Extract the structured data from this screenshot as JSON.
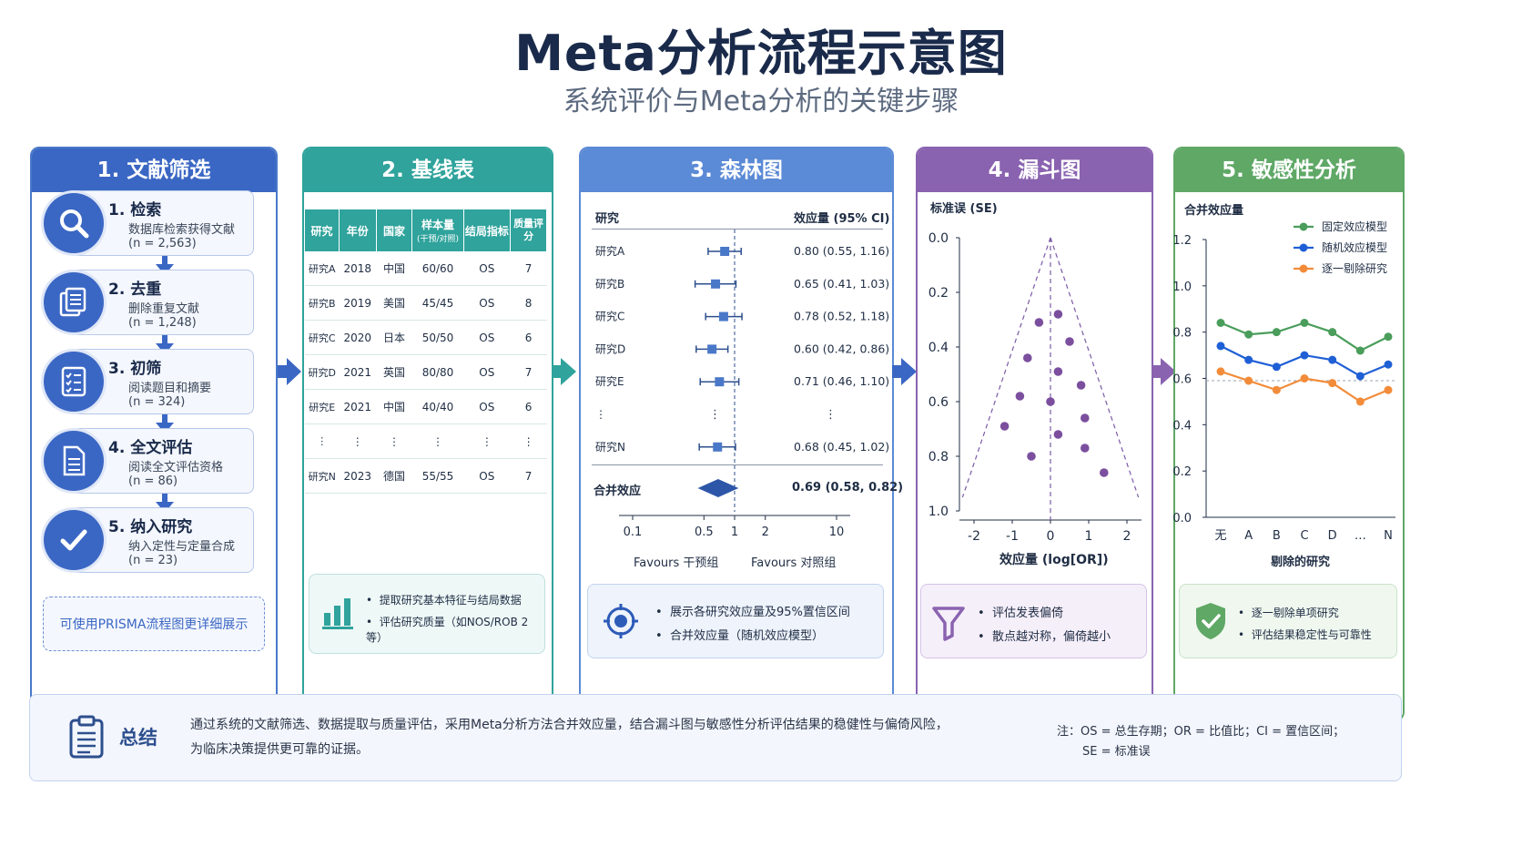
{
  "header": {
    "title": "Meta分析流程示意图",
    "subtitle": "系统评价与Meta分析的关键步骤"
  },
  "colors": {
    "blue": "#3b67c4",
    "teal": "#2fa39c",
    "forest": "#5b8ad6",
    "funnel": "#8a63b0",
    "sens": "#5fa866"
  },
  "panel1": {
    "title": "1. 文献筛选",
    "steps": [
      {
        "title": "1. 检索",
        "desc": "数据库检索获得文献",
        "count": "(n = 2,563)",
        "icon": "search-icon"
      },
      {
        "title": "2. 去重",
        "desc": "删除重复文献",
        "count": "(n = 1,248)",
        "icon": "documents-icon"
      },
      {
        "title": "3. 初筛",
        "desc": "阅读题目和摘要",
        "count": "(n = 324)",
        "icon": "checklist-icon"
      },
      {
        "title": "4. 全文评估",
        "desc": "阅读全文评估资格",
        "count": "(n = 86)",
        "icon": "document-icon"
      },
      {
        "title": "5. 纳入研究",
        "desc": "纳入定性与定量合成",
        "count": "(n = 23)",
        "icon": "check-icon"
      }
    ],
    "note": "可使用PRISMA流程图更详细展示"
  },
  "panel2": {
    "title": "2. 基线表",
    "headers": [
      "研究",
      "年份",
      "国家",
      "样本量",
      "结局指标",
      "质量评分"
    ],
    "sample_sub": "(干预/对照)",
    "rows": [
      [
        "研究A",
        "2018",
        "中国",
        "60/60",
        "OS",
        "7"
      ],
      [
        "研究B",
        "2019",
        "美国",
        "45/45",
        "OS",
        "8"
      ],
      [
        "研究C",
        "2020",
        "日本",
        "50/50",
        "OS",
        "6"
      ],
      [
        "研究D",
        "2021",
        "英国",
        "80/80",
        "OS",
        "7"
      ],
      [
        "研究E",
        "2021",
        "中国",
        "40/40",
        "OS",
        "6"
      ],
      [
        "⋮",
        "⋮",
        "⋮",
        "⋮",
        "⋮",
        "⋮"
      ],
      [
        "研究N",
        "2023",
        "德国",
        "55/55",
        "OS",
        "7"
      ]
    ],
    "notes": [
      "提取研究基本特征与结局数据",
      "评估研究质量（如NOS/ROB 2等）"
    ]
  },
  "panel3": {
    "title": "3. 森林图",
    "col_study": "研究",
    "col_effect": "效应量 (95% CI)",
    "pooled_label": "合并效应",
    "pooled_text": "0.69 (0.58, 0.82)",
    "ticks": [
      "0.1",
      "0.5",
      "1",
      "2",
      "10"
    ],
    "favours_left": "Favours 干预组",
    "favours_right": "Favours 对照组",
    "notes": [
      "展示各研究效应量及95%置信区间",
      "合并效应量（随机效应模型）"
    ]
  },
  "panel4": {
    "title": "4. 漏斗图",
    "ylabel": "标准误 (SE)",
    "xlabel": "效应量 (log[OR])",
    "yticks": [
      "0.0",
      "0.2",
      "0.4",
      "0.6",
      "0.8",
      "1.0"
    ],
    "xticks": [
      "-2",
      "-1",
      "0",
      "1",
      "2"
    ],
    "notes": [
      "评估发表偏倚",
      "散点越对称，偏倚越小"
    ]
  },
  "panel5": {
    "title": "5. 敏感性分析",
    "ylabel": "合并效应量",
    "xlabel": "剔除的研究",
    "yticks": [
      "1.2",
      "1.0",
      "0.8",
      "0.6",
      "0.4",
      "0.2",
      "0.0"
    ],
    "notes": [
      "逐一剔除单项研究",
      "评估结果稳定性与可靠性"
    ]
  },
  "chart_data": [
    {
      "type": "forest",
      "studies": [
        "研究A",
        "研究B",
        "研究C",
        "研究D",
        "研究E",
        "⋮",
        "研究N"
      ],
      "effects": [
        {
          "est": 0.8,
          "lo": 0.55,
          "hi": 1.16,
          "text": "0.80 (0.55, 1.16)"
        },
        {
          "est": 0.65,
          "lo": 0.41,
          "hi": 1.03,
          "text": "0.65 (0.41, 1.03)"
        },
        {
          "est": 0.78,
          "lo": 0.52,
          "hi": 1.18,
          "text": "0.78 (0.52, 1.18)"
        },
        {
          "est": 0.6,
          "lo": 0.42,
          "hi": 0.86,
          "text": "0.60 (0.42, 0.86)"
        },
        {
          "est": 0.71,
          "lo": 0.46,
          "hi": 1.1,
          "text": "0.71 (0.46, 1.10)"
        },
        null,
        {
          "est": 0.68,
          "lo": 0.45,
          "hi": 1.02,
          "text": "0.68 (0.45, 1.02)"
        }
      ],
      "pooled": {
        "est": 0.69,
        "lo": 0.58,
        "hi": 0.82
      },
      "xscale": "log"
    },
    {
      "type": "scatter",
      "xlim": [
        -2.2,
        2.2
      ],
      "ylim": [
        0,
        1.0
      ],
      "points": [
        [
          0.2,
          0.28
        ],
        [
          -0.3,
          0.31
        ],
        [
          0.5,
          0.38
        ],
        [
          -0.6,
          0.44
        ],
        [
          0.2,
          0.49
        ],
        [
          0.8,
          0.54
        ],
        [
          -0.8,
          0.58
        ],
        [
          0.0,
          0.6
        ],
        [
          0.9,
          0.66
        ],
        [
          -1.2,
          0.69
        ],
        [
          0.2,
          0.72
        ],
        [
          0.9,
          0.77
        ],
        [
          -0.5,
          0.8
        ],
        [
          1.4,
          0.86
        ]
      ],
      "funnel_apex": [
        0.0,
        0.0
      ],
      "reference_x": 0.0
    },
    {
      "type": "line",
      "categories": [
        "无",
        "A",
        "B",
        "C",
        "D",
        "…",
        "N"
      ],
      "ylim": [
        0.0,
        1.2
      ],
      "reference_y": 0.59,
      "series": [
        {
          "name": "固定效应模型",
          "color": "#4a9d5b",
          "values": [
            0.84,
            0.79,
            0.8,
            0.84,
            0.8,
            0.72,
            0.78
          ]
        },
        {
          "name": "随机效应模型",
          "color": "#1f5fd6",
          "values": [
            0.74,
            0.68,
            0.65,
            0.7,
            0.68,
            0.61,
            0.66
          ]
        },
        {
          "name": "逐一剔除研究",
          "color": "#f28c3a",
          "values": [
            0.63,
            0.59,
            0.55,
            0.6,
            0.58,
            0.5,
            0.55
          ]
        }
      ]
    }
  ],
  "summary": {
    "label": "总结",
    "text1": "通过系统的文献筛选、数据提取与质量评估，采用Meta分析方法合并效应量，结合漏斗图与敏感性分析评估结果的稳健性与偏倚风险，",
    "text2": "为临床决策提供更可靠的证据。",
    "note1": "注：OS = 总生存期；OR = 比值比；CI = 置信区间；",
    "note2": "SE = 标准误"
  }
}
